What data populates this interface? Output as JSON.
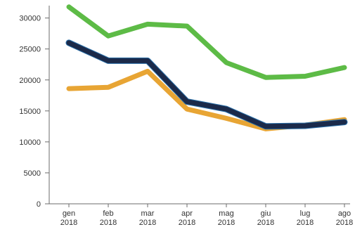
{
  "chart_data": {
    "type": "line",
    "categories": [
      [
        "gen",
        "2018"
      ],
      [
        "feb",
        "2018"
      ],
      [
        "mar",
        "2018"
      ],
      [
        "apr",
        "2018"
      ],
      [
        "mag",
        "2018"
      ],
      [
        "giu",
        "2018"
      ],
      [
        "lug",
        "2018"
      ],
      [
        "ago",
        "2018"
      ]
    ],
    "y_ticks": [
      "0",
      "5000",
      "10000",
      "15000",
      "20000",
      "25000",
      "30000"
    ],
    "ylim": [
      0,
      32000
    ],
    "grid": false,
    "series": [
      {
        "color": "#5dbb46",
        "values": [
          31800,
          27100,
          29000,
          28700,
          22800,
          20400,
          20600,
          22000
        ]
      },
      {
        "color": "#e8a534",
        "values": [
          18600,
          18800,
          21400,
          15300,
          13800,
          12100,
          12700,
          13600
        ]
      },
      {
        "color": "#1b2a4a",
        "values": [
          26000,
          23100,
          23100,
          16500,
          15300,
          12500,
          12600,
          13200
        ]
      }
    ]
  }
}
